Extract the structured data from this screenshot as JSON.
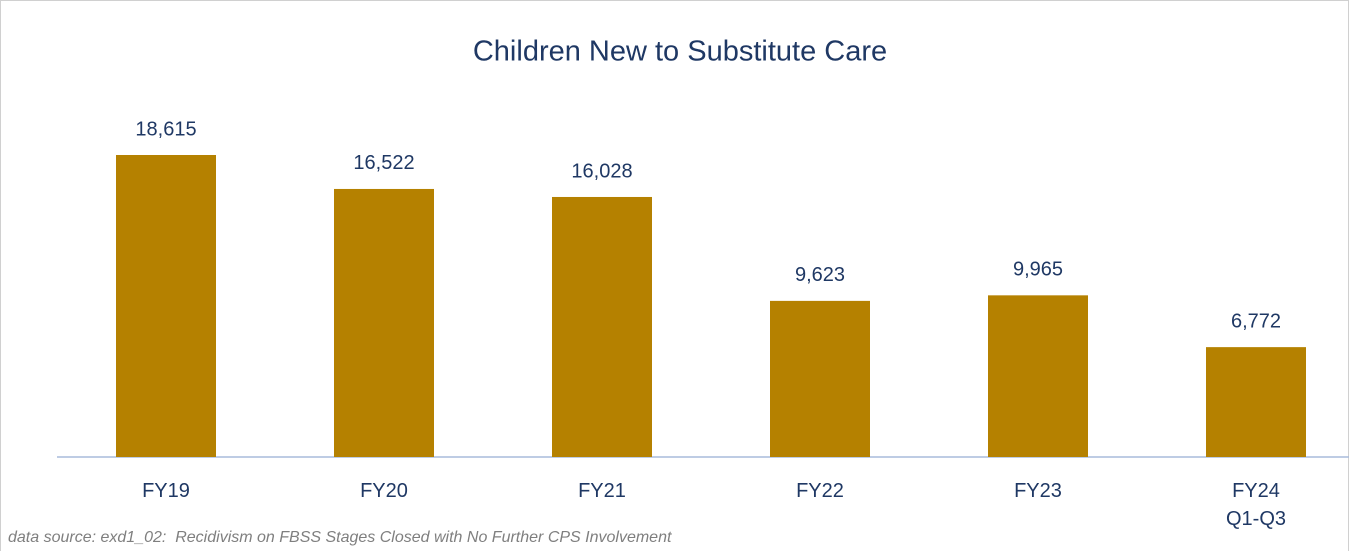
{
  "chart_data": {
    "type": "bar",
    "title": "Children New to Substitute Care",
    "categories": [
      "FY19",
      "FY20",
      "FY21",
      "FY22",
      "FY23",
      "FY24\nQ1-Q3"
    ],
    "values": [
      18615,
      16522,
      16028,
      9623,
      9965,
      6772
    ],
    "value_labels": [
      "18,615",
      "16,522",
      "16,028",
      "9,623",
      "9,965",
      "6,772"
    ],
    "color": "#b58100",
    "note": "data source: exd1_02:  Recidivism on FBSS Stages Closed with No Further CPS Involvement"
  }
}
